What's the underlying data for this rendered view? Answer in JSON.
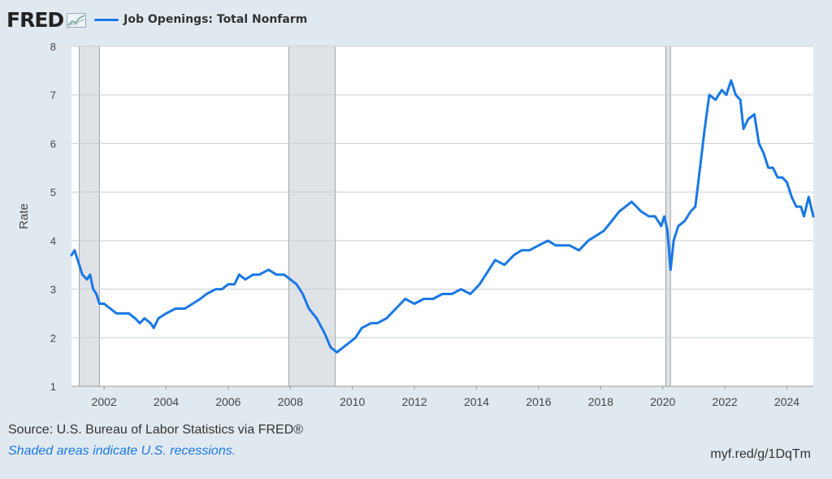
{
  "header": {
    "logo": "FRED",
    "legend_label": "Job Openings: Total Nonfarm",
    "series_color": "#1978e5"
  },
  "footer": {
    "source": "Source: U.S. Bureau of Labor Statistics via FRED®",
    "shaded_note": "Shaded areas indicate U.S. recessions.",
    "short_link": "myf.red/g/1DqTm"
  },
  "chart_data": {
    "type": "line",
    "title": "Job Openings: Total Nonfarm",
    "xlabel": "",
    "ylabel": "Rate",
    "xlim": [
      2000.95,
      2024.85
    ],
    "ylim": [
      1,
      8
    ],
    "grid": true,
    "x_ticks": [
      2002,
      2004,
      2006,
      2008,
      2010,
      2012,
      2014,
      2016,
      2018,
      2020,
      2022,
      2024
    ],
    "y_ticks": [
      1,
      2,
      3,
      4,
      5,
      6,
      7,
      8
    ],
    "recessions": [
      {
        "start": 2001.2,
        "end": 2001.85
      },
      {
        "start": 2007.95,
        "end": 2009.45
      },
      {
        "start": 2020.1,
        "end": 2020.25
      }
    ],
    "series": [
      {
        "name": "Job Openings: Total Nonfarm",
        "color": "#1978e5",
        "x": [
          2000.95,
          2001.05,
          2001.15,
          2001.3,
          2001.45,
          2001.55,
          2001.65,
          2001.75,
          2001.85,
          2002.0,
          2002.2,
          2002.4,
          2002.6,
          2002.8,
          2003.0,
          2003.15,
          2003.3,
          2003.5,
          2003.6,
          2003.75,
          2004.0,
          2004.3,
          2004.6,
          2004.85,
          2005.1,
          2005.3,
          2005.6,
          2005.8,
          2006.0,
          2006.2,
          2006.35,
          2006.55,
          2006.8,
          2007.0,
          2007.3,
          2007.55,
          2007.8,
          2008.0,
          2008.2,
          2008.4,
          2008.6,
          2008.85,
          2009.1,
          2009.3,
          2009.5,
          2009.7,
          2009.9,
          2010.1,
          2010.3,
          2010.6,
          2010.8,
          2011.1,
          2011.4,
          2011.7,
          2012.0,
          2012.3,
          2012.6,
          2012.9,
          2013.2,
          2013.5,
          2013.8,
          2014.1,
          2014.4,
          2014.6,
          2014.9,
          2015.2,
          2015.45,
          2015.7,
          2016.0,
          2016.3,
          2016.55,
          2016.8,
          2017.0,
          2017.3,
          2017.6,
          2017.85,
          2018.1,
          2018.35,
          2018.6,
          2018.8,
          2019.0,
          2019.3,
          2019.55,
          2019.75,
          2019.95,
          2020.05,
          2020.15,
          2020.25,
          2020.35,
          2020.5,
          2020.7,
          2020.9,
          2021.05,
          2021.2,
          2021.35,
          2021.5,
          2021.7,
          2021.9,
          2022.05,
          2022.2,
          2022.35,
          2022.5,
          2022.6,
          2022.75,
          2022.95,
          2023.1,
          2023.25,
          2023.4,
          2023.55,
          2023.7,
          2023.85,
          2024.0,
          2024.15,
          2024.3,
          2024.45,
          2024.55,
          2024.7,
          2024.85
        ],
        "values": [
          3.7,
          3.8,
          3.6,
          3.3,
          3.2,
          3.3,
          3.0,
          2.9,
          2.7,
          2.7,
          2.6,
          2.5,
          2.5,
          2.5,
          2.4,
          2.3,
          2.4,
          2.3,
          2.2,
          2.4,
          2.5,
          2.6,
          2.6,
          2.7,
          2.8,
          2.9,
          3.0,
          3.0,
          3.1,
          3.1,
          3.3,
          3.2,
          3.3,
          3.3,
          3.4,
          3.3,
          3.3,
          3.2,
          3.1,
          2.9,
          2.6,
          2.4,
          2.1,
          1.8,
          1.7,
          1.8,
          1.9,
          2.0,
          2.2,
          2.3,
          2.3,
          2.4,
          2.6,
          2.8,
          2.7,
          2.8,
          2.8,
          2.9,
          2.9,
          3.0,
          2.9,
          3.1,
          3.4,
          3.6,
          3.5,
          3.7,
          3.8,
          3.8,
          3.9,
          4.0,
          3.9,
          3.9,
          3.9,
          3.8,
          4.0,
          4.1,
          4.2,
          4.4,
          4.6,
          4.7,
          4.8,
          4.6,
          4.5,
          4.5,
          4.3,
          4.5,
          4.2,
          3.4,
          4.0,
          4.3,
          4.4,
          4.6,
          4.7,
          5.5,
          6.3,
          7.0,
          6.9,
          7.1,
          7.0,
          7.3,
          7.0,
          6.9,
          6.3,
          6.5,
          6.6,
          6.0,
          5.8,
          5.5,
          5.5,
          5.3,
          5.3,
          5.2,
          4.9,
          4.7,
          4.7,
          4.5,
          4.9,
          4.5
        ]
      }
    ]
  }
}
